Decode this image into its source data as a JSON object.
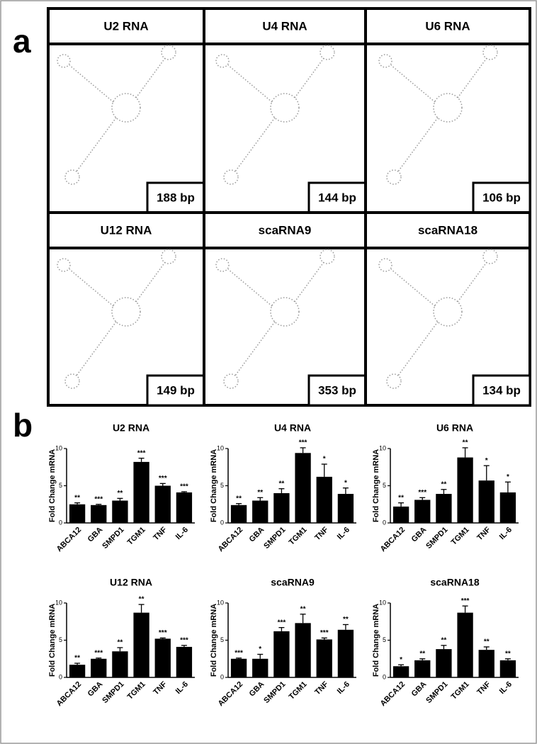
{
  "panel_a": {
    "label": "a",
    "tiles": [
      {
        "title": "U2 RNA",
        "size": "188 bp"
      },
      {
        "title": "U4 RNA",
        "size": "144 bp"
      },
      {
        "title": "U6 RNA",
        "size": "106 bp"
      },
      {
        "title": "U12 RNA",
        "size": "149 bp"
      },
      {
        "title": "scaRNA9",
        "size": "353 bp"
      },
      {
        "title": "scaRNA18",
        "size": "134 bp"
      }
    ]
  },
  "panel_b": {
    "label": "b"
  },
  "chart_data": [
    {
      "type": "bar",
      "title": "U2 RNA",
      "ylabel": "Fold Change mRNA",
      "categories": [
        "ABCA12",
        "GBA",
        "SMPD1",
        "TGM1",
        "TNF",
        "IL-6"
      ],
      "values": [
        2.5,
        2.4,
        3.0,
        8.2,
        5.0,
        4.1
      ],
      "errors": [
        0.2,
        0.1,
        0.3,
        0.5,
        0.3,
        0.1
      ],
      "annotations": [
        "**",
        "***",
        "**",
        "***",
        "***",
        "***"
      ],
      "color": "#000000",
      "ylim": [
        0,
        10
      ],
      "yticks": [
        0,
        5,
        10
      ]
    },
    {
      "type": "bar",
      "title": "U4 RNA",
      "ylabel": "Fold Change mRNA",
      "categories": [
        "ABCA12",
        "GBA",
        "SMPD1",
        "TGM1",
        "TNF",
        "IL-6"
      ],
      "values": [
        2.4,
        3.0,
        4.0,
        9.4,
        6.2,
        3.9
      ],
      "errors": [
        0.2,
        0.4,
        0.6,
        0.7,
        1.7,
        0.8
      ],
      "annotations": [
        "**",
        "**",
        "**",
        "***",
        "*",
        "*"
      ],
      "color": "#000000",
      "ylim": [
        0,
        10
      ],
      "yticks": [
        0,
        5,
        10
      ]
    },
    {
      "type": "bar",
      "title": "U6 RNA",
      "ylabel": "Fold Change mRNA",
      "categories": [
        "ABCA12",
        "GBA",
        "SMPD1",
        "TGM1",
        "TNF",
        "IL-6"
      ],
      "values": [
        2.2,
        3.1,
        3.9,
        8.8,
        5.7,
        4.1
      ],
      "errors": [
        0.5,
        0.3,
        0.6,
        1.3,
        2.0,
        1.4
      ],
      "annotations": [
        "**",
        "***",
        "**",
        "**",
        "*",
        "*"
      ],
      "color": "#000000",
      "ylim": [
        0,
        10
      ],
      "yticks": [
        0,
        5,
        10
      ]
    },
    {
      "type": "bar",
      "title": "U12 RNA",
      "ylabel": "Fold Change mRNA",
      "categories": [
        "ABCA12",
        "GBA",
        "SMPD1",
        "TGM1",
        "TNF",
        "IL-6"
      ],
      "values": [
        1.7,
        2.5,
        3.5,
        8.7,
        5.2,
        4.1
      ],
      "errors": [
        0.2,
        0.1,
        0.5,
        1.1,
        0.1,
        0.2
      ],
      "annotations": [
        "**",
        "***",
        "**",
        "**",
        "***",
        "***"
      ],
      "color": "#000000",
      "ylim": [
        0,
        10
      ],
      "yticks": [
        0,
        5,
        10
      ]
    },
    {
      "type": "bar",
      "title": "scaRNA9",
      "ylabel": "Fold Change mRNA",
      "categories": [
        "ABCA12",
        "GBA",
        "SMPD1",
        "TGM1",
        "TNF",
        "IL-6"
      ],
      "values": [
        2.5,
        2.5,
        6.2,
        7.3,
        5.1,
        6.4
      ],
      "errors": [
        0.1,
        0.6,
        0.5,
        1.2,
        0.2,
        0.7
      ],
      "annotations": [
        "***",
        "*",
        "***",
        "**",
        "***",
        "**"
      ],
      "color": "#000000",
      "ylim": [
        0,
        10
      ],
      "yticks": [
        0,
        5,
        10
      ]
    },
    {
      "type": "bar",
      "title": "scaRNA18",
      "ylabel": "Fold Change mRNA",
      "categories": [
        "ABCA12",
        "GBA",
        "SMPD1",
        "TGM1",
        "TNF",
        "IL-6"
      ],
      "values": [
        1.5,
        2.3,
        3.8,
        8.7,
        3.7,
        2.3
      ],
      "errors": [
        0.2,
        0.2,
        0.5,
        0.9,
        0.4,
        0.2
      ],
      "annotations": [
        "*",
        "**",
        "**",
        "***",
        "**",
        "**"
      ],
      "color": "#000000",
      "ylim": [
        0,
        10
      ],
      "yticks": [
        0,
        5,
        10
      ]
    }
  ]
}
